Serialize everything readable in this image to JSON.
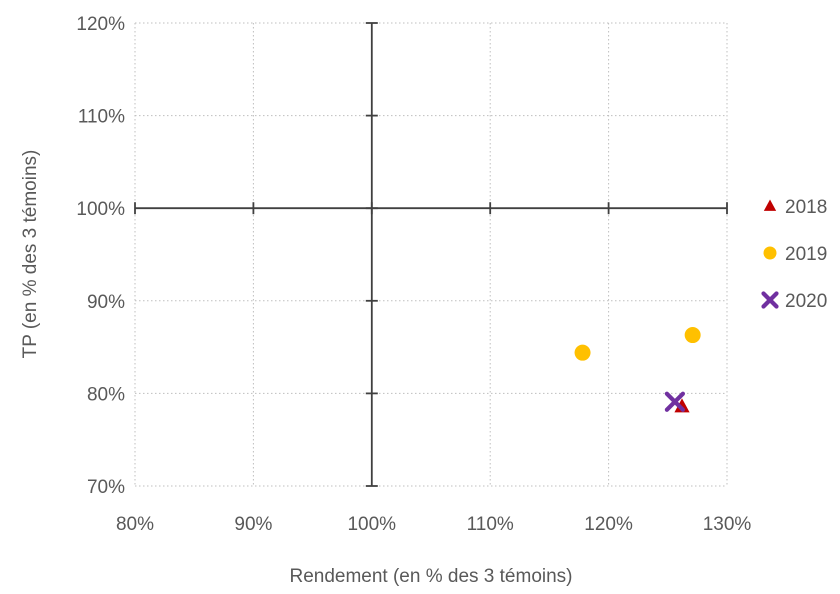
{
  "chart_data": {
    "type": "scatter",
    "title": "",
    "xlabel": "Rendement (en % des 3 témoins)",
    "ylabel": "TP (en % des 3 témoins)",
    "xlim": [
      0.8,
      1.3
    ],
    "ylim": [
      0.7,
      1.2
    ],
    "x_ticks": [
      0.8,
      0.9,
      1.0,
      1.1,
      1.2,
      1.3
    ],
    "x_tick_labels": [
      "80%",
      "90%",
      "100%",
      "110%",
      "120%",
      "130%"
    ],
    "y_ticks": [
      0.7,
      0.8,
      0.9,
      1.0,
      1.1,
      1.2
    ],
    "y_tick_labels": [
      "70%",
      "80%",
      "90%",
      "100%",
      "110%",
      "120%"
    ],
    "grid": true,
    "grid_style": "dotted",
    "reference_lines": {
      "x": 1.0,
      "y": 1.0
    },
    "legend_position": "right",
    "series": [
      {
        "name": "2018",
        "marker": "triangle",
        "color": "#C00000",
        "points": [
          [
            1.262,
            0.786
          ]
        ]
      },
      {
        "name": "2019",
        "marker": "circle",
        "color": "#FFC000",
        "points": [
          [
            1.178,
            0.844
          ],
          [
            1.271,
            0.863
          ]
        ]
      },
      {
        "name": "2020",
        "marker": "x",
        "color": "#7030A0",
        "points": [
          [
            1.256,
            0.791
          ]
        ]
      }
    ]
  }
}
